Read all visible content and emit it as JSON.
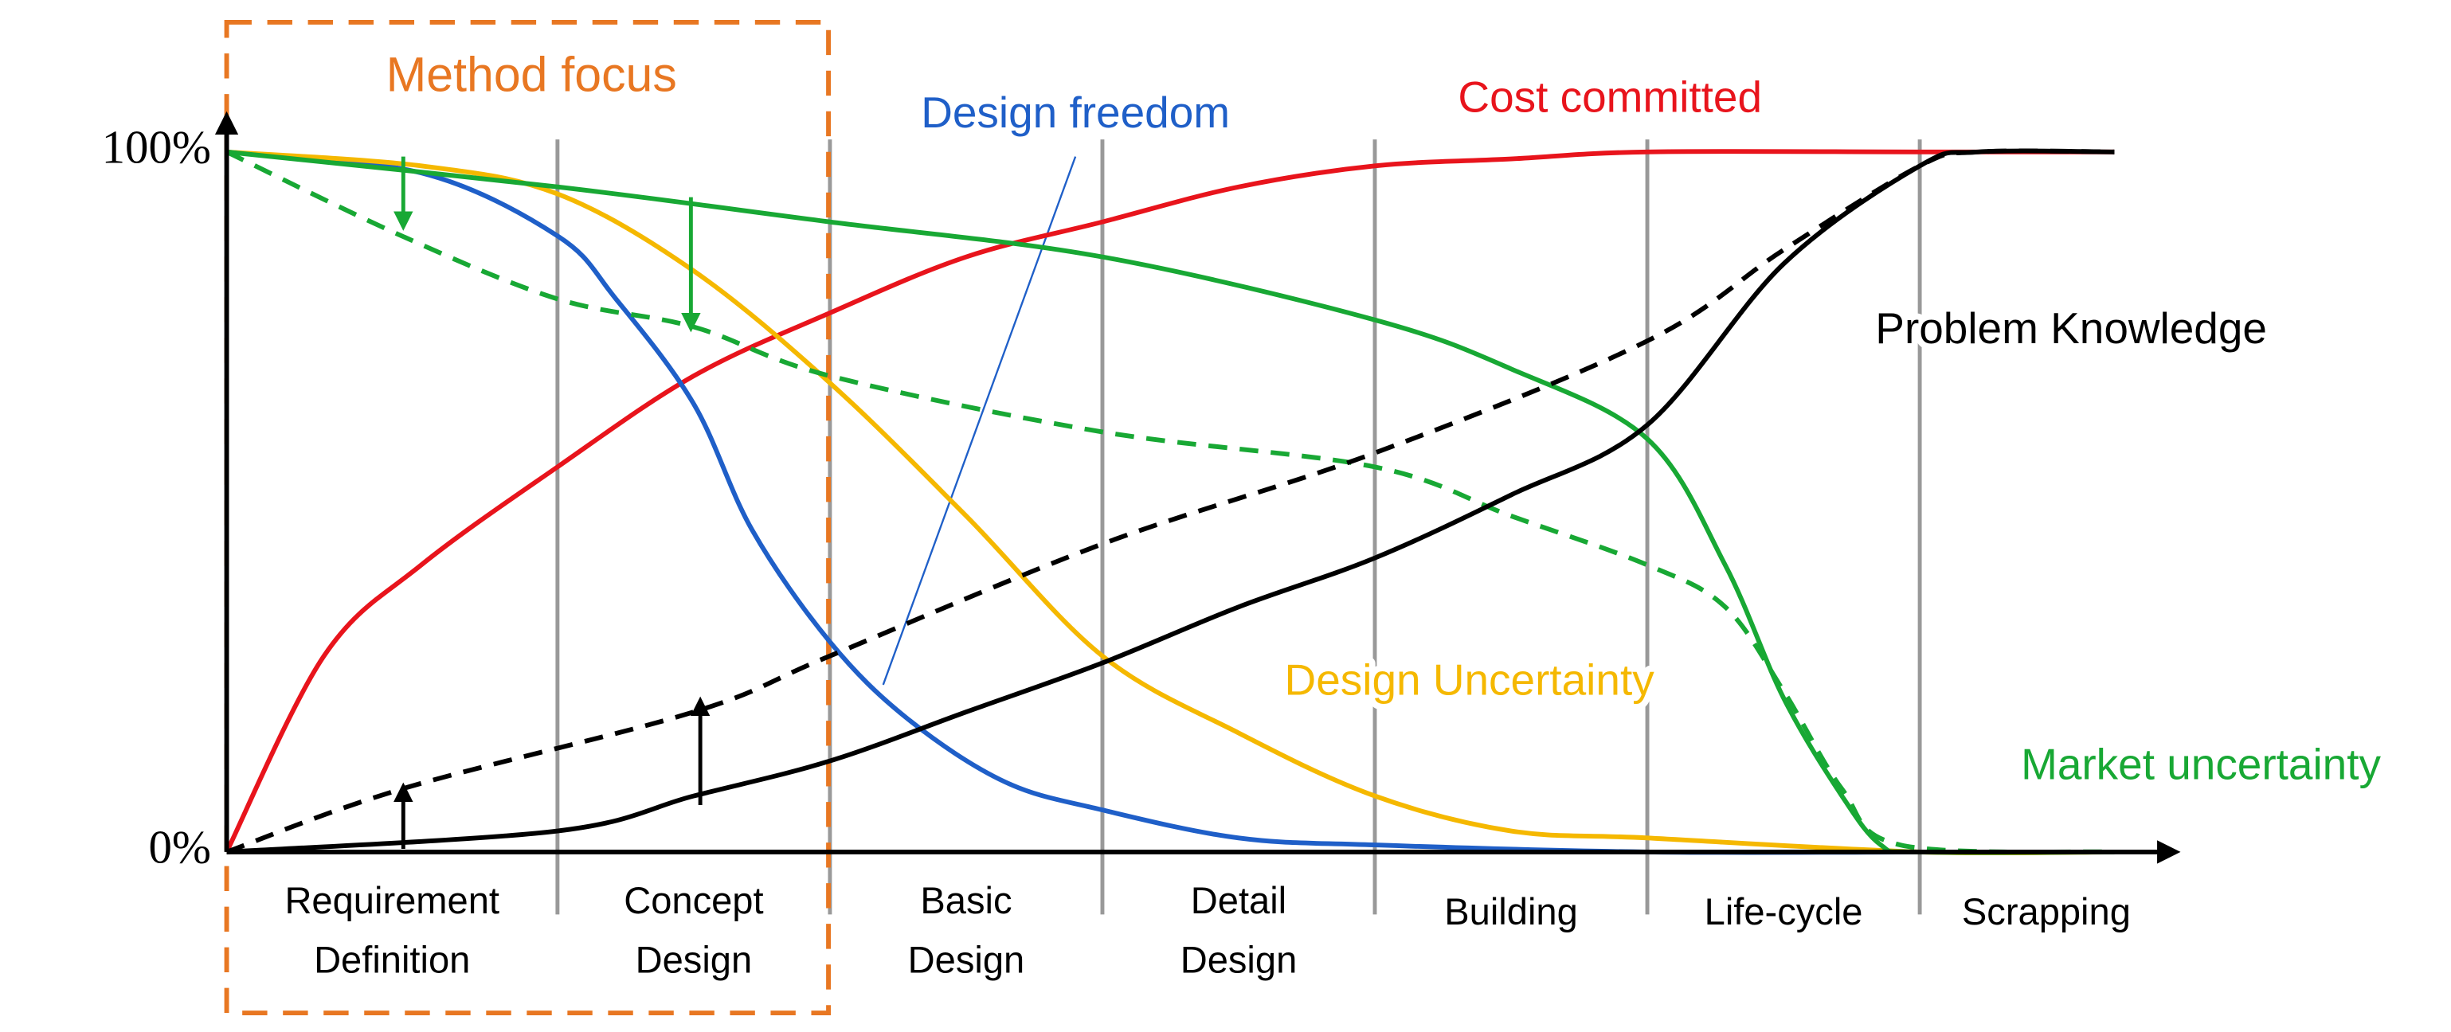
{
  "chart_data": {
    "type": "line",
    "annotations": [
      "Method focus",
      "Design freedom",
      "Cost committed",
      "Problem Knowledge",
      "Design Uncertainty",
      "Market uncertainty"
    ],
    "categories": [
      [
        "Requirement",
        "Definition"
      ],
      [
        "Concept",
        "Design"
      ],
      [
        "Basic",
        "Design"
      ],
      [
        "Detail",
        "Design"
      ],
      [
        "Building"
      ],
      [
        "Life-cycle"
      ],
      [
        "Scrapping"
      ]
    ],
    "xlim": [
      0,
      100
    ],
    "xticks": [
      17,
      31,
      45,
      59,
      73,
      87
    ],
    "ylim": [
      0,
      100
    ],
    "yticks": [
      {
        "value": 100,
        "label": "100%"
      },
      {
        "value": 0,
        "label": "0%"
      }
    ],
    "series": [
      {
        "name": "Cost committed",
        "color": "#e8141c",
        "dashed": false,
        "x": [
          0,
          5,
          10,
          17,
          24,
          31,
          38,
          45,
          52,
          59,
          66,
          73,
          87,
          97
        ],
        "values": [
          0,
          28,
          41,
          55,
          68,
          77,
          85,
          90,
          95,
          98,
          99,
          100,
          100,
          100
        ]
      },
      {
        "name": "Design freedom",
        "color": "#1f5fc8",
        "dashed": false,
        "x": [
          0,
          10,
          17,
          20,
          24,
          27,
          31,
          35,
          40,
          45,
          52,
          59,
          73,
          87
        ],
        "values": [
          100,
          97,
          88,
          79,
          64,
          46,
          30,
          19,
          10,
          6,
          2,
          1,
          0,
          0
        ]
      },
      {
        "name": "Design Uncertainty",
        "color": "#f5b800",
        "dashed": false,
        "x": [
          0,
          10,
          17,
          24,
          31,
          38,
          45,
          52,
          59,
          66,
          73,
          87,
          97
        ],
        "values": [
          100,
          98,
          94,
          83,
          67,
          48,
          28,
          17,
          8,
          3,
          2,
          0,
          0
        ]
      },
      {
        "name": "Market uncertainty",
        "color": "#18a834",
        "dashed": false,
        "x": [
          0,
          17,
          31,
          45,
          59,
          66,
          73,
          77,
          80,
          83,
          85,
          87,
          97
        ],
        "values": [
          100,
          95,
          90,
          85,
          76,
          69,
          59,
          41,
          22,
          8,
          1,
          0,
          0
        ]
      },
      {
        "color": "#18a834",
        "dashed": true,
        "x": [
          0,
          9,
          17,
          24,
          31,
          45,
          59,
          66,
          73,
          77,
          80,
          83,
          86,
          97
        ],
        "values": [
          100,
          88,
          79,
          75,
          68,
          60,
          55,
          48,
          41,
          35,
          23,
          9,
          1,
          0
        ]
      },
      {
        "name": "Problem Knowledge",
        "color": "#000000",
        "dashed": false,
        "x": [
          0,
          17,
          24,
          31,
          38,
          45,
          52,
          59,
          66,
          73,
          80,
          87,
          90,
          97
        ],
        "values": [
          0,
          3,
          8,
          13,
          20,
          27,
          35,
          42,
          51,
          61,
          84,
          98,
          100,
          100
        ]
      },
      {
        "color": "#000000",
        "dashed": true,
        "x": [
          0,
          9,
          24,
          31,
          45,
          59,
          73,
          80,
          87,
          90,
          97
        ],
        "values": [
          0,
          9,
          20,
          28,
          44,
          57,
          73,
          86,
          98,
          100,
          100
        ]
      }
    ]
  }
}
